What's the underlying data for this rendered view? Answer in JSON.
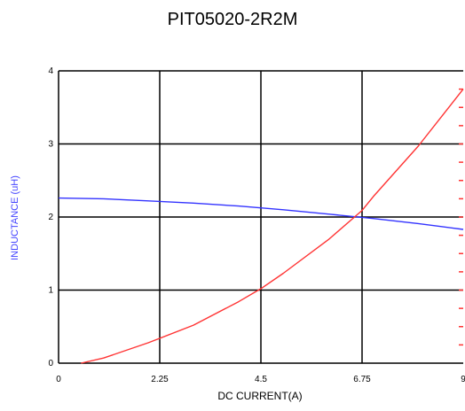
{
  "chart_data": {
    "type": "line",
    "title": "PIT05020-2R2M",
    "xlabel": "DC CURRENT(A)",
    "ylabel": "INDUCTANCE (uH)",
    "xlim": [
      0,
      9
    ],
    "ylim": [
      0,
      4
    ],
    "x_ticks": [
      "0",
      "2.25",
      "4.5",
      "6.75",
      "9"
    ],
    "y_ticks": [
      "0",
      "1",
      "2",
      "3",
      "4"
    ],
    "grid": true,
    "series": [
      {
        "color": "#3333ff",
        "x": [
          0,
          1,
          2,
          3,
          4,
          5,
          6,
          7,
          8,
          9
        ],
        "y": [
          2.26,
          2.25,
          2.22,
          2.19,
          2.15,
          2.1,
          2.04,
          1.98,
          1.91,
          1.83
        ]
      },
      {
        "color": "#ff3333",
        "x": [
          0.5,
          1,
          2,
          3,
          4,
          4.5,
          5,
          6,
          6.75,
          7,
          8,
          9
        ],
        "y": [
          0.0,
          0.07,
          0.28,
          0.52,
          0.84,
          1.02,
          1.23,
          1.69,
          2.09,
          2.28,
          2.97,
          3.75
        ]
      }
    ]
  }
}
